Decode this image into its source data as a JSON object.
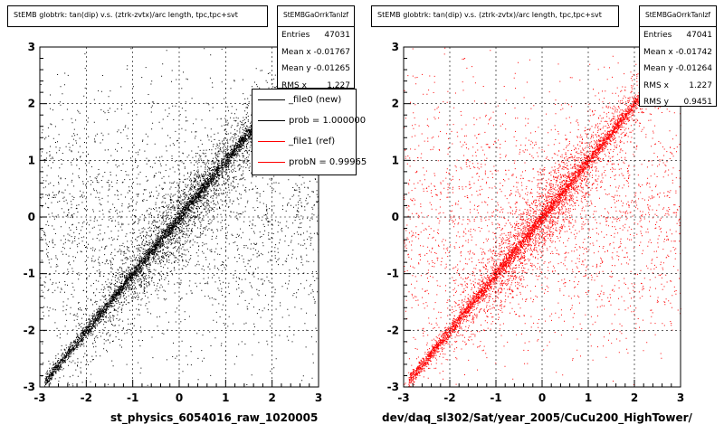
{
  "chart_data": [
    {
      "type": "scatter",
      "title": "StEMB globtrk: tan(dip) v.s. (ztrk-zvtx)/arc length, tpc,tpc+svt",
      "xlabel": "st_physics_6054016_raw_1020005",
      "ylabel": "",
      "xlim": [
        -3,
        3
      ],
      "ylim": [
        -3,
        3
      ],
      "x_ticks": [
        "-3",
        "-2",
        "-1",
        "0",
        "1",
        "2",
        "3"
      ],
      "y_ticks": [
        "-3",
        "-2",
        "-1",
        "0",
        "1",
        "2",
        "3"
      ],
      "grid": true,
      "color": "#000000",
      "stats": {
        "header": "StEMBGaOrrkTanIzf",
        "entries_label": "Entries",
        "entries": "47031",
        "mean_x_label": "Mean x",
        "mean_x": "-0.01767",
        "mean_y_label": "Mean y",
        "mean_y": "-0.01265",
        "rms_x_label": "RMS x",
        "rms_x": "1.227"
      },
      "legend": [
        {
          "label": "_file0 (new)",
          "color": "#000000"
        },
        {
          "label": "prob = 1.000000",
          "color": "#000000"
        },
        {
          "label": "_file1 (ref)",
          "color": "#ff0000"
        },
        {
          "label": "probN = 0.99965",
          "color": "#ff0000"
        }
      ],
      "legend_position": "top-right",
      "series": [
        {
          "name": "_file0 (new)",
          "n_entries": 47031,
          "corr_slope": 1.0,
          "spread": 1.227
        }
      ]
    },
    {
      "type": "scatter",
      "title": "StEMB globtrk: tan(dip) v.s. (ztrk-zvtx)/arc length, tpc,tpc+svt",
      "xlabel": "dev/daq_sl302/Sat/year_2005/CuCu200_HighTower/",
      "ylabel": "",
      "xlim": [
        -3,
        3
      ],
      "ylim": [
        -3,
        3
      ],
      "x_ticks": [
        "-3",
        "-2",
        "-1",
        "0",
        "1",
        "2",
        "3"
      ],
      "y_ticks": [
        "-3",
        "-2",
        "-1",
        "0",
        "1",
        "2",
        "3"
      ],
      "grid": true,
      "color": "#ff0000",
      "stats": {
        "header": "StEMBGaOrrkTanIzf",
        "entries_label": "Entries",
        "entries": "47041",
        "mean_x_label": "Mean x",
        "mean_x": "-0.01742",
        "mean_y_label": "Mean y",
        "mean_y": "-0.01264",
        "rms_x_label": "RMS x",
        "rms_x": "1.227",
        "rms_y_label": "RMS y",
        "rms_y": "0.9451"
      },
      "series": [
        {
          "name": "_file1 (ref)",
          "n_entries": 47041,
          "corr_slope": 1.0,
          "spread": 1.227
        }
      ]
    }
  ]
}
